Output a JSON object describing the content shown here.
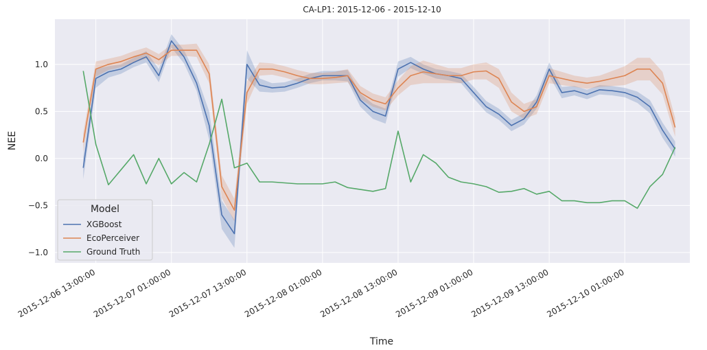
{
  "chart_data": {
    "type": "line",
    "title": "CA-LP1: 2015-12-06 - 2015-12-10",
    "xlabel": "Time",
    "ylabel": "NEE",
    "legend_title": "Model",
    "legend": "lower left",
    "grid": true,
    "x": [
      "2015-12-06 11:00:00",
      "2015-12-06 13:00:00",
      "2015-12-06 15:00:00",
      "2015-12-06 17:00:00",
      "2015-12-06 19:00:00",
      "2015-12-06 21:00:00",
      "2015-12-06 23:00:00",
      "2015-12-07 01:00:00",
      "2015-12-07 03:00:00",
      "2015-12-07 05:00:00",
      "2015-12-07 07:00:00",
      "2015-12-07 09:00:00",
      "2015-12-07 11:00:00",
      "2015-12-07 13:00:00",
      "2015-12-07 15:00:00",
      "2015-12-07 17:00:00",
      "2015-12-07 19:00:00",
      "2015-12-07 21:00:00",
      "2015-12-07 23:00:00",
      "2015-12-08 01:00:00",
      "2015-12-08 03:00:00",
      "2015-12-08 05:00:00",
      "2015-12-08 07:00:00",
      "2015-12-08 09:00:00",
      "2015-12-08 11:00:00",
      "2015-12-08 13:00:00",
      "2015-12-08 15:00:00",
      "2015-12-08 17:00:00",
      "2015-12-08 19:00:00",
      "2015-12-08 21:00:00",
      "2015-12-08 23:00:00",
      "2015-12-09 01:00:00",
      "2015-12-09 03:00:00",
      "2015-12-09 05:00:00",
      "2015-12-09 07:00:00",
      "2015-12-09 09:00:00",
      "2015-12-09 11:00:00",
      "2015-12-09 13:00:00",
      "2015-12-09 15:00:00",
      "2015-12-09 17:00:00",
      "2015-12-09 19:00:00",
      "2015-12-09 21:00:00",
      "2015-12-09 23:00:00",
      "2015-12-10 01:00:00",
      "2015-12-10 03:00:00",
      "2015-12-10 05:00:00",
      "2015-12-10 07:00:00",
      "2015-12-10 09:00:00"
    ],
    "xlim": [
      "2015-12-06 06:30:00",
      "2015-12-10 11:20:00"
    ],
    "xticks": [
      "2015-12-06 13:00:00",
      "2015-12-07 01:00:00",
      "2015-12-07 13:00:00",
      "2015-12-08 01:00:00",
      "2015-12-08 13:00:00",
      "2015-12-09 01:00:00",
      "2015-12-09 13:00:00",
      "2015-12-10 01:00:00"
    ],
    "ylim": [
      -1.11,
      1.48
    ],
    "yticks": [
      {
        "value": -1.0,
        "label": "−1.0"
      },
      {
        "value": -0.5,
        "label": "−0.5"
      },
      {
        "value": 0.0,
        "label": "0.0"
      },
      {
        "value": 0.5,
        "label": "0.5"
      },
      {
        "value": 1.0,
        "label": "1.0"
      }
    ],
    "series": [
      {
        "name": "XGBoost",
        "color": "#4c72b0",
        "values": [
          -0.1,
          0.85,
          0.92,
          0.95,
          1.02,
          1.08,
          0.88,
          1.25,
          1.08,
          0.8,
          0.35,
          -0.6,
          -0.8,
          1.0,
          0.78,
          0.75,
          0.76,
          0.8,
          0.85,
          0.88,
          0.88,
          0.88,
          0.62,
          0.5,
          0.45,
          0.95,
          1.02,
          0.95,
          0.9,
          0.88,
          0.85,
          0.7,
          0.55,
          0.47,
          0.35,
          0.42,
          0.6,
          0.95,
          0.7,
          0.72,
          0.68,
          0.73,
          0.72,
          0.7,
          0.65,
          0.55,
          0.3,
          0.1
        ],
        "ci": [
          0.12,
          0.1,
          0.06,
          0.05,
          0.05,
          0.06,
          0.07,
          0.07,
          0.07,
          0.08,
          0.15,
          0.15,
          0.15,
          0.15,
          0.07,
          0.05,
          0.05,
          0.05,
          0.05,
          0.05,
          0.05,
          0.06,
          0.07,
          0.08,
          0.08,
          0.08,
          0.06,
          0.05,
          0.05,
          0.05,
          0.05,
          0.06,
          0.06,
          0.06,
          0.06,
          0.06,
          0.07,
          0.07,
          0.06,
          0.05,
          0.05,
          0.05,
          0.05,
          0.05,
          0.06,
          0.07,
          0.08,
          0.08
        ]
      },
      {
        "name": "EcoPerceiver",
        "color": "#dd8452",
        "values": [
          0.17,
          0.95,
          1.0,
          1.03,
          1.08,
          1.12,
          1.05,
          1.15,
          1.15,
          1.15,
          0.9,
          -0.3,
          -0.55,
          0.7,
          0.95,
          0.95,
          0.92,
          0.88,
          0.85,
          0.85,
          0.86,
          0.88,
          0.7,
          0.62,
          0.58,
          0.75,
          0.88,
          0.92,
          0.9,
          0.88,
          0.88,
          0.92,
          0.93,
          0.85,
          0.6,
          0.5,
          0.55,
          0.88,
          0.85,
          0.82,
          0.8,
          0.82,
          0.85,
          0.88,
          0.95,
          0.95,
          0.8,
          0.33
        ],
        "ci": [
          0.1,
          0.08,
          0.06,
          0.06,
          0.06,
          0.06,
          0.06,
          0.06,
          0.06,
          0.07,
          0.1,
          0.12,
          0.12,
          0.12,
          0.07,
          0.06,
          0.06,
          0.06,
          0.06,
          0.06,
          0.06,
          0.07,
          0.07,
          0.07,
          0.07,
          0.08,
          0.1,
          0.12,
          0.1,
          0.08,
          0.08,
          0.08,
          0.09,
          0.1,
          0.1,
          0.08,
          0.08,
          0.08,
          0.07,
          0.06,
          0.06,
          0.06,
          0.08,
          0.1,
          0.12,
          0.12,
          0.12,
          0.1
        ]
      },
      {
        "name": "Ground Truth",
        "color": "#55a868",
        "values": [
          0.93,
          0.15,
          -0.28,
          -0.12,
          0.04,
          -0.27,
          0.0,
          -0.27,
          -0.15,
          -0.25,
          0.15,
          0.63,
          -0.1,
          -0.05,
          -0.25,
          -0.25,
          -0.26,
          -0.27,
          -0.27,
          -0.27,
          -0.25,
          -0.31,
          -0.33,
          -0.35,
          -0.32,
          0.29,
          -0.25,
          0.04,
          -0.05,
          -0.2,
          -0.25,
          -0.27,
          -0.3,
          -0.36,
          -0.35,
          -0.32,
          -0.38,
          -0.35,
          -0.45,
          -0.45,
          -0.47,
          -0.47,
          -0.45,
          -0.45,
          -0.53,
          -0.3,
          -0.17,
          0.12
        ]
      }
    ]
  }
}
